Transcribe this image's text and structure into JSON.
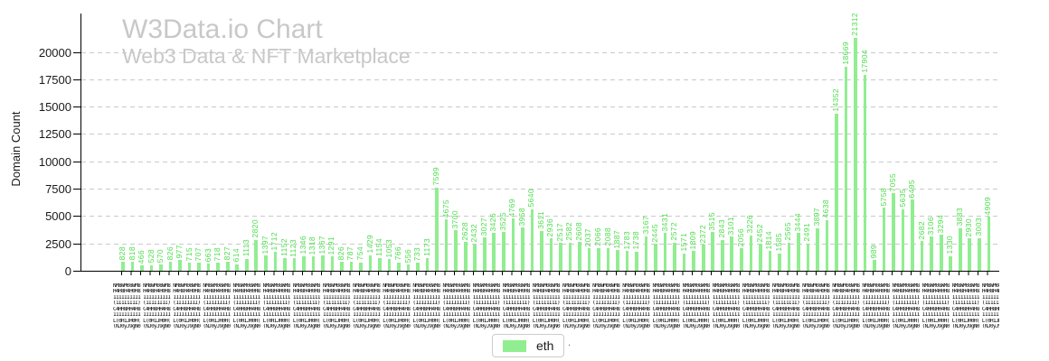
{
  "title": "W3Data.io Chart",
  "subtitle": "Web3 Data & NFT Marketplace",
  "colors": {
    "bar": "#90EE90",
    "bar_label": "#4cdd4c",
    "title_gray": "#c8c8c8",
    "grid": "#c9c9c9",
    "axis": "#000000"
  },
  "legend": {
    "items": [
      {
        "label": "eth",
        "color": "#90EE90"
      }
    ],
    "suffix": "."
  },
  "chart_data": {
    "type": "bar",
    "title": "W3Data.io Chart",
    "subtitle": "Web3 Data & NFT Marketplace",
    "xlabel": "",
    "ylabel": "Domain Count",
    "ylim": [
      0,
      23000
    ],
    "yticks": [
      0,
      2500,
      5000,
      7500,
      10000,
      12500,
      15000,
      17500,
      20000
    ],
    "grid": "horizontal dashed",
    "legend_position": "bottom center",
    "bar_value_labels_rotated": true,
    "x_tick_labels": "92 long overlapping tick labels, unreadable in source image (rendered as dense black bands)",
    "series": [
      {
        "name": "eth",
        "color": "#90EE90",
        "values": [
          828,
          818,
          466,
          528,
          570,
          826,
          977,
          715,
          707,
          663,
          718,
          827,
          614,
          1113,
          2820,
          1397,
          1712,
          1152,
          1123,
          1346,
          1318,
          1367,
          1291,
          826,
          787,
          754,
          1429,
          1154,
          1053,
          766,
          556,
          733,
          1173,
          7599,
          4675,
          3700,
          2628,
          2432,
          3027,
          3426,
          3525,
          4769,
          3958,
          5640,
          3611,
          2936,
          2517,
          2582,
          2608,
          2037,
          2066,
          2088,
          1887,
          1783,
          1738,
          3167,
          2445,
          3431,
          2572,
          1571,
          1809,
          2372,
          3515,
          2843,
          3101,
          2056,
          3226,
          2452,
          1814,
          1585,
          2565,
          3444,
          2491,
          3897,
          4638,
          14352,
          18669,
          21312,
          17904,
          989,
          5758,
          7055,
          5635,
          6495,
          2682,
          3106,
          3294,
          1330,
          3883,
          2930,
          3003,
          4909
        ]
      }
    ]
  },
  "xaxis_mush": {
    "rows": [
      "NM8WM08WM8",
      "H4H8H4H0H8",
      "1111111111",
      "(1I1I1I1I)",
      "C4HH8HH4H8",
      "1111111111",
      "L(0H1JH0H(",
      "(NJ0yJ9gN0"
    ]
  }
}
